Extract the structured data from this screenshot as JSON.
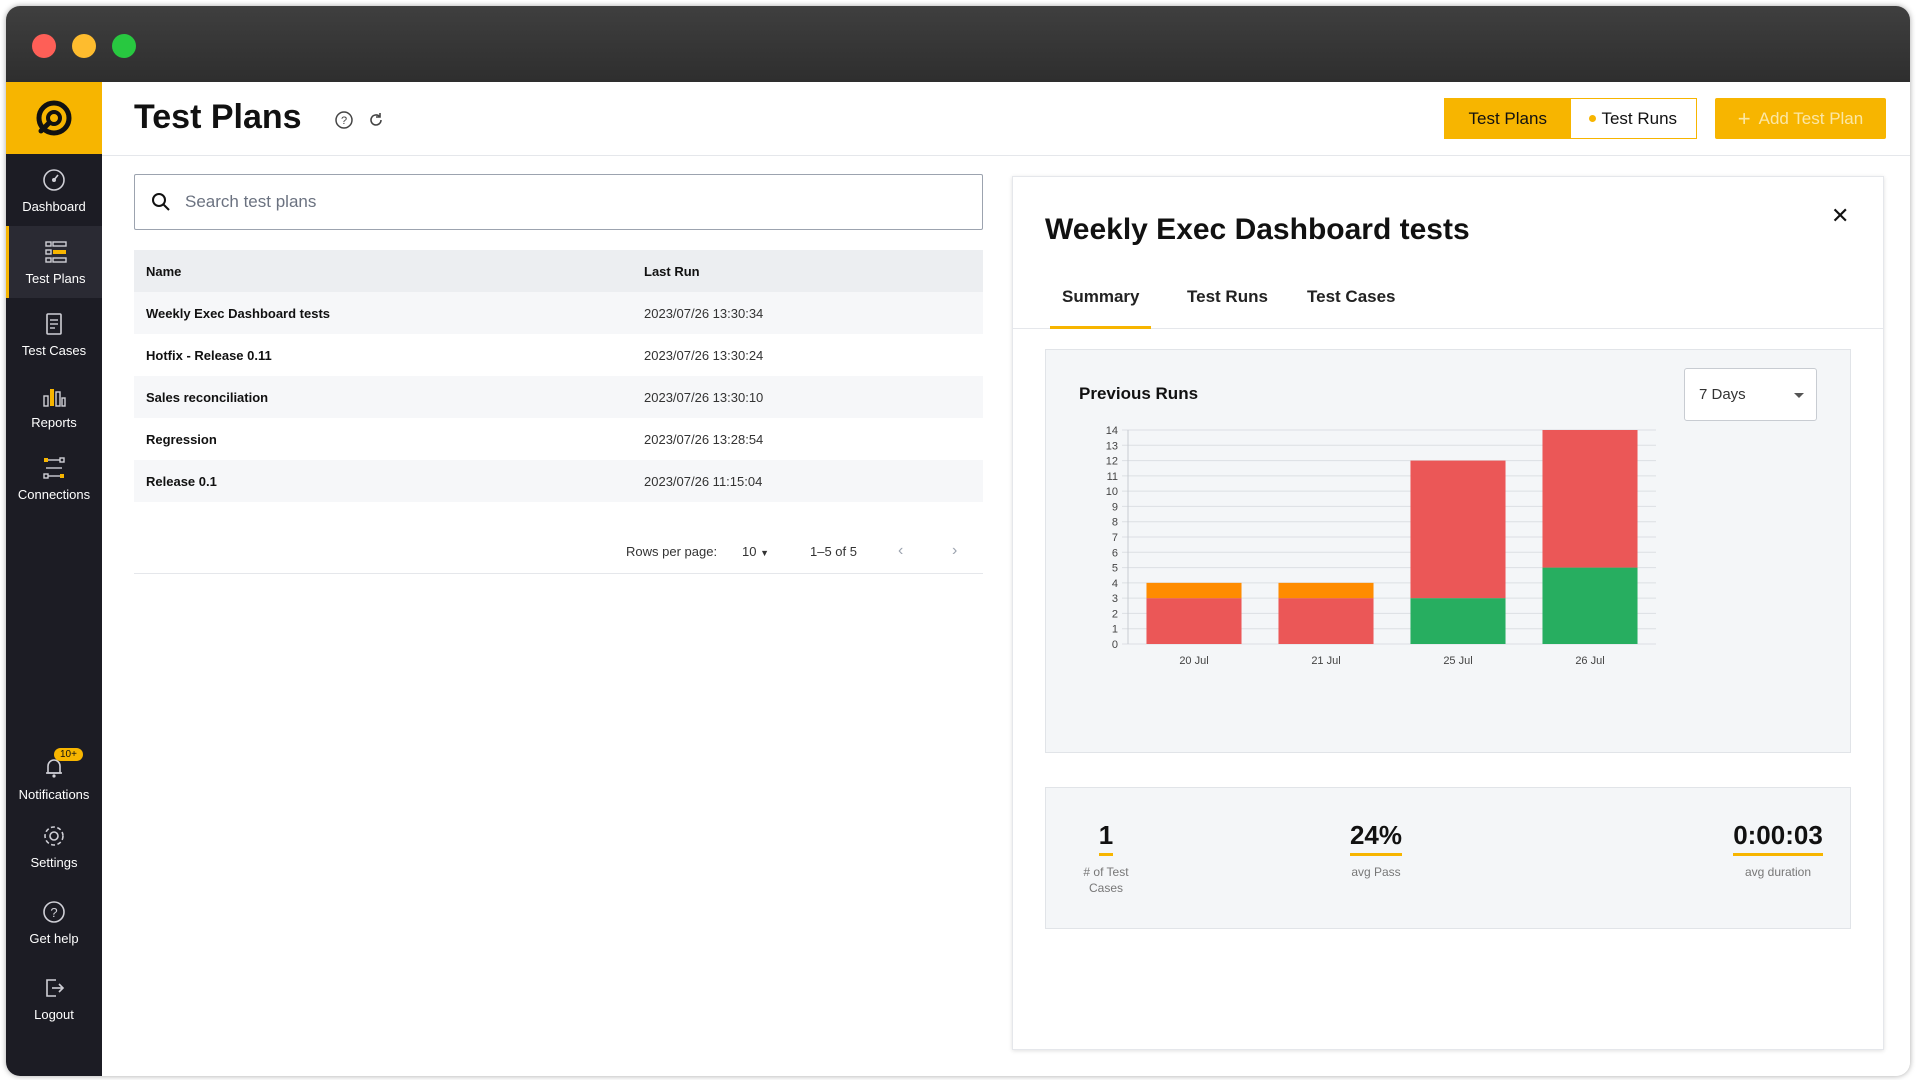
{
  "app": {
    "accent": "#f7b500"
  },
  "sidebar": {
    "items": [
      {
        "label": "Dashboard",
        "icon": "dashboard-icon"
      },
      {
        "label": "Test Plans",
        "icon": "test-plans-icon",
        "active": true
      },
      {
        "label": "Test Cases",
        "icon": "test-cases-icon"
      },
      {
        "label": "Reports",
        "icon": "reports-icon"
      },
      {
        "label": "Connections",
        "icon": "connections-icon"
      }
    ],
    "bottom": [
      {
        "label": "Notifications",
        "icon": "bell-icon",
        "badge": "10+"
      },
      {
        "label": "Settings",
        "icon": "gear-icon"
      },
      {
        "label": "Get help",
        "icon": "help-icon"
      },
      {
        "label": "Logout",
        "icon": "logout-icon"
      }
    ]
  },
  "header": {
    "title": "Test Plans",
    "toggle": {
      "left": "Test Plans",
      "right": "Test Runs"
    },
    "add_button": "Add Test Plan"
  },
  "search": {
    "placeholder": "Search test plans"
  },
  "table": {
    "columns": [
      "Name",
      "Last Run"
    ],
    "rows": [
      {
        "name": "Weekly Exec Dashboard tests",
        "last_run": "2023/07/26 13:30:34"
      },
      {
        "name": "Hotfix - Release 0.11",
        "last_run": "2023/07/26 13:30:24"
      },
      {
        "name": "Sales reconciliation",
        "last_run": "2023/07/26 13:30:10"
      },
      {
        "name": "Regression",
        "last_run": "2023/07/26 13:28:54"
      },
      {
        "name": "Release 0.1",
        "last_run": "2023/07/26 11:15:04"
      }
    ],
    "pagination": {
      "rows_per_page_label": "Rows per page:",
      "rows_per_page": "10",
      "range": "1–5 of 5"
    }
  },
  "detail": {
    "title": "Weekly Exec Dashboard tests",
    "tabs": [
      "Summary",
      "Test Runs",
      "Test Cases"
    ],
    "active_tab": "Summary",
    "chart_title": "Previous Runs",
    "range_select": "7 Days",
    "stats": [
      {
        "value": "1",
        "label": "# of Test Cases"
      },
      {
        "value": "24%",
        "label": "avg Pass"
      },
      {
        "value": "0:00:03",
        "label": "avg duration"
      }
    ]
  },
  "chart_data": {
    "type": "bar",
    "stacked": true,
    "categories": [
      "20 Jul",
      "21 Jul",
      "25 Jul",
      "26 Jul"
    ],
    "series": [
      {
        "color": "#27ae60",
        "values": [
          0,
          0,
          3,
          5
        ]
      },
      {
        "color": "#eb5757",
        "values": [
          3,
          3,
          9,
          9
        ]
      },
      {
        "color": "#ff8c00",
        "values": [
          1,
          1,
          0,
          0
        ]
      }
    ],
    "ylim": [
      0,
      14
    ],
    "yticks": [
      "0",
      "1",
      "2",
      "3",
      "4",
      "5",
      "6",
      "7",
      "8",
      "9",
      "10",
      "11",
      "12",
      "13",
      "14"
    ],
    "grid": true
  }
}
